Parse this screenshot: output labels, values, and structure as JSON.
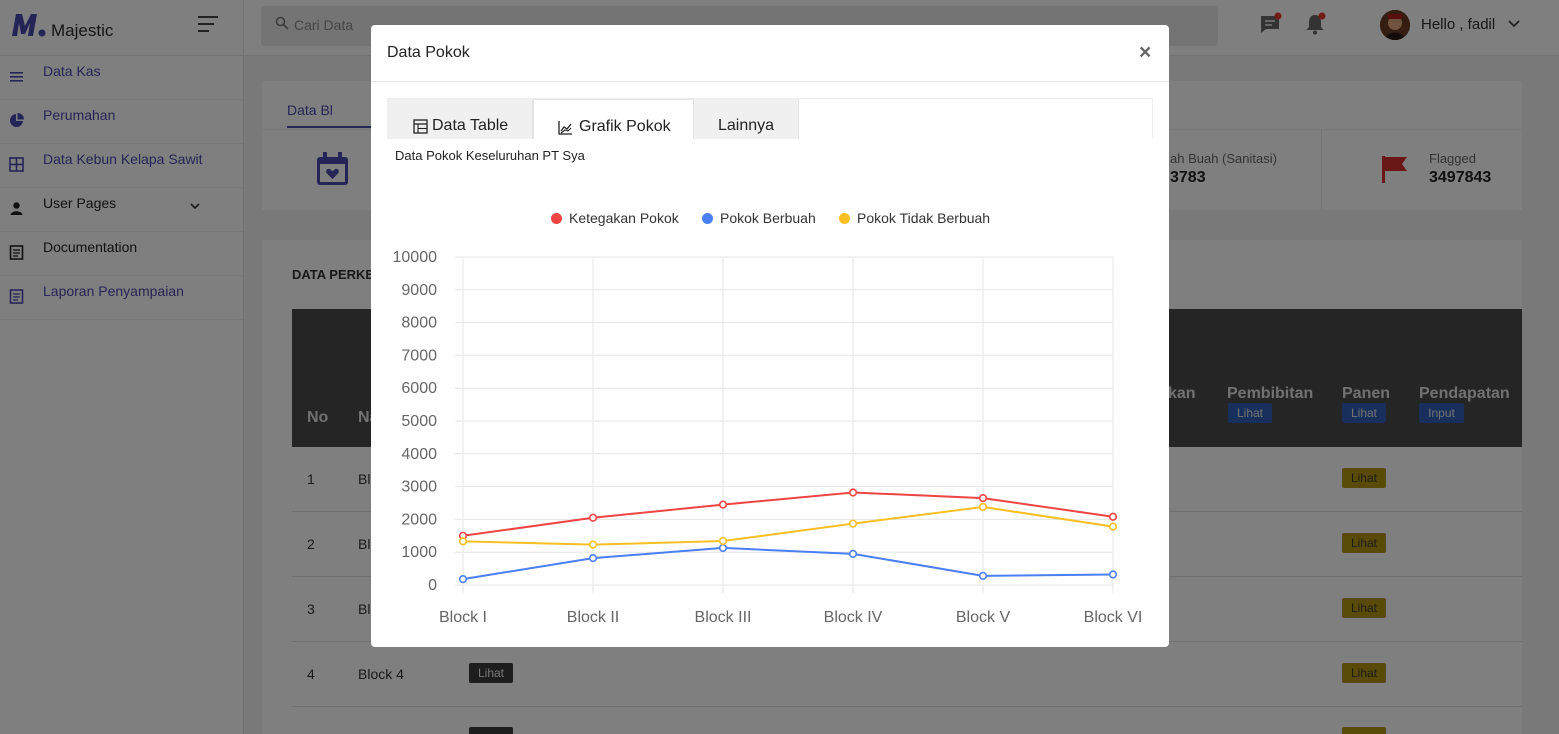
{
  "app": {
    "brand_name": "Majestic",
    "search_placeholder": "Cari Data",
    "user_greeting": "Hello , fadil"
  },
  "sidebar": {
    "items": [
      {
        "label": "Data Kas"
      },
      {
        "label": "Perumahan"
      },
      {
        "label": "Data Kebun Kelapa Sawit"
      },
      {
        "label": "User Pages"
      },
      {
        "label": "Documentation"
      },
      {
        "label": "Laporan Penyampaian"
      }
    ]
  },
  "content": {
    "tab_active": "Data Bl",
    "stats": {
      "sanitasi_label": "ah Buah (Sanitasi)",
      "sanitasi_value": "3783",
      "flagged_label": "Flagged",
      "flagged_value": "3497843"
    },
    "table": {
      "title": "DATA PERKE",
      "headers": {
        "no": "No",
        "name": "Na",
        "partial": "kan",
        "pembibitan": "Pembibitan",
        "panen": "Panen",
        "pendapatan": "Pendapatan"
      },
      "header_badges": {
        "pembibitan": "Lihat",
        "panen": "Lihat",
        "pendapatan": "Input"
      },
      "rows": [
        {
          "no": "1",
          "name": "Bl",
          "panen_badge": "Lihat"
        },
        {
          "no": "2",
          "name": "Bl",
          "panen_badge": "Lihat"
        },
        {
          "no": "3",
          "name": "Bl",
          "panen_badge": "Lihat"
        },
        {
          "no": "4",
          "name": "Block 4",
          "detail_badge": "Lihat",
          "panen_badge": "Lihat"
        }
      ]
    }
  },
  "modal": {
    "title": "Data Pokok",
    "close_label": "×",
    "tabs": [
      {
        "label": "Data Table",
        "icon": "table-icon"
      },
      {
        "label": "Grafik Pokok",
        "icon": "chart-area-icon"
      },
      {
        "label": "Lainnya"
      }
    ],
    "active_tab": "Grafik Pokok",
    "chart_caption": "Data Pokok Keseluruhan PT Sya"
  },
  "chart_data": {
    "type": "line",
    "categories": [
      "Block I",
      "Block II",
      "Block III",
      "Block IV",
      "Block V",
      "Block VI"
    ],
    "ylim": [
      0,
      10000
    ],
    "yticks": [
      0,
      1000,
      2000,
      3000,
      4000,
      5000,
      6000,
      7000,
      8000,
      9000,
      10000
    ],
    "grid": true,
    "legend_position": "top",
    "series": [
      {
        "name": "Ketegakan Pokok",
        "color": "#ef4444",
        "values": [
          1500,
          2050,
          2450,
          2820,
          2650,
          2080
        ]
      },
      {
        "name": "Pokok Berbuah",
        "color": "#4a7ff5",
        "values": [
          180,
          820,
          1130,
          950,
          280,
          320
        ]
      },
      {
        "name": "Pokok Tidak Berbuah",
        "color": "#fbbf24",
        "values": [
          1330,
          1230,
          1340,
          1870,
          2380,
          1780
        ]
      }
    ]
  }
}
